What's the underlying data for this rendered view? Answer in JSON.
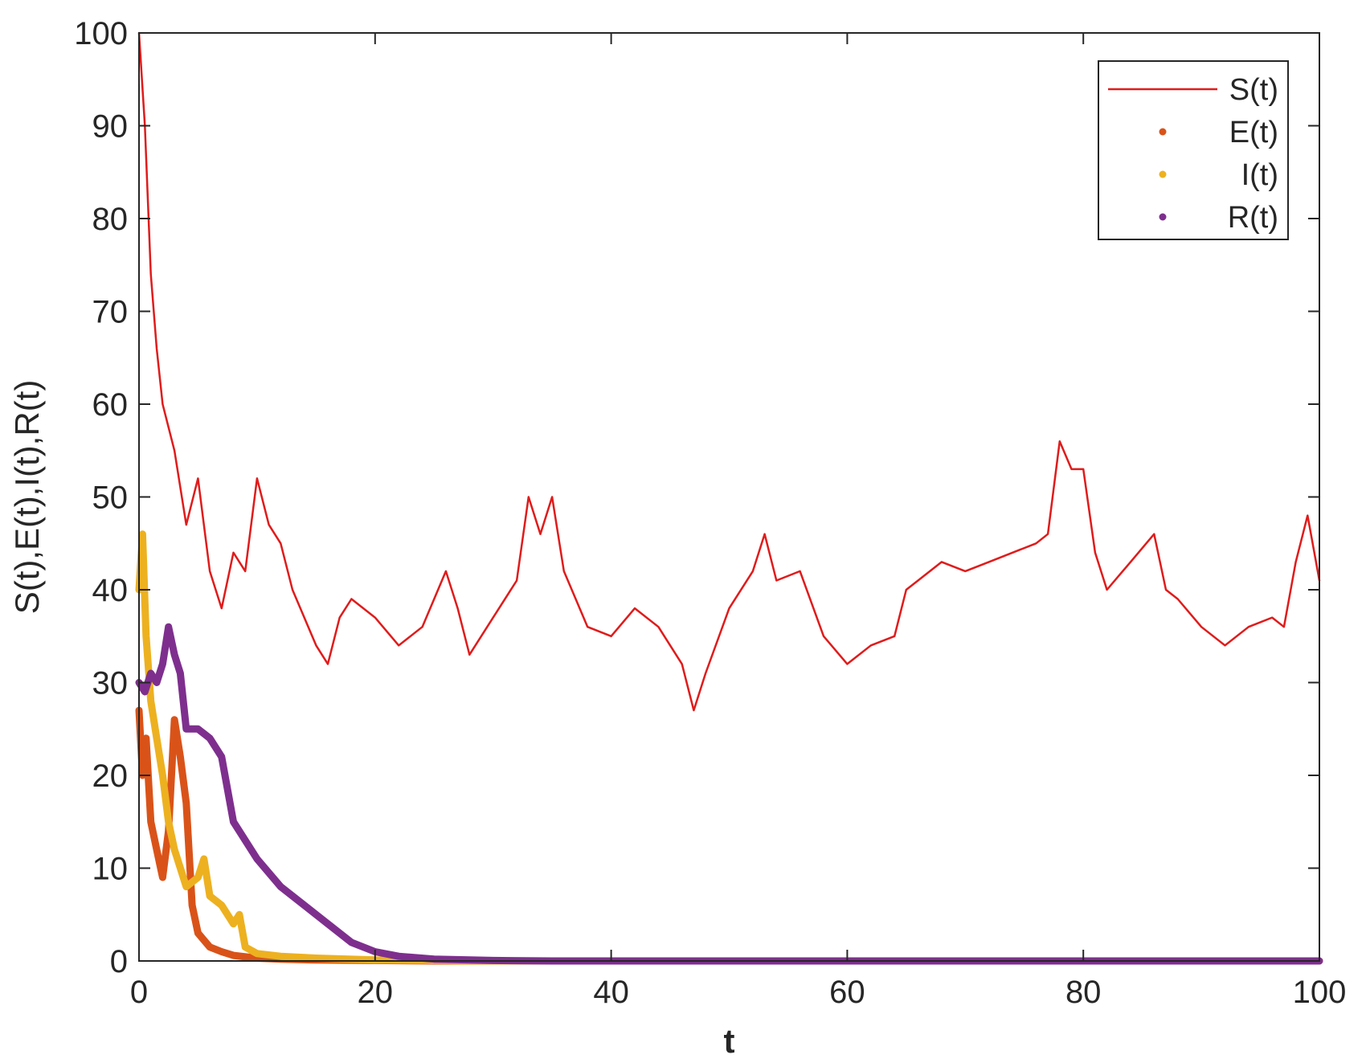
{
  "chart_data": {
    "type": "line",
    "title": "",
    "xlabel": "t",
    "ylabel": "S(t),E(t),I(t),R(t)",
    "xlim": [
      0,
      100
    ],
    "ylim": [
      0,
      100
    ],
    "xticks": [
      "0",
      "20",
      "40",
      "60",
      "80",
      "100"
    ],
    "yticks": [
      "0",
      "10",
      "20",
      "30",
      "40",
      "50",
      "60",
      "70",
      "80",
      "90",
      "100"
    ],
    "grid": false,
    "legend_position": "top-right",
    "series": [
      {
        "name": "S(t)",
        "color": "#e01b1b",
        "style": "solid-thin",
        "x": [
          0,
          0.5,
          1,
          1.5,
          2,
          3,
          4,
          5,
          6,
          7,
          8,
          9,
          10,
          11,
          12,
          13,
          14,
          15,
          16,
          17,
          18,
          20,
          22,
          24,
          25,
          26,
          27,
          28,
          30,
          32,
          33,
          34,
          35,
          36,
          38,
          40,
          42,
          44,
          46,
          47,
          48,
          50,
          52,
          53,
          54,
          56,
          58,
          60,
          62,
          64,
          65,
          66,
          68,
          70,
          72,
          74,
          76,
          77,
          78,
          79,
          80,
          81,
          82,
          84,
          86,
          87,
          88,
          90,
          92,
          94,
          96,
          97,
          98,
          99,
          100
        ],
        "y": [
          100,
          90,
          74,
          66,
          60,
          55,
          47,
          52,
          42,
          38,
          44,
          42,
          52,
          47,
          45,
          40,
          37,
          34,
          32,
          37,
          39,
          37,
          34,
          36,
          39,
          42,
          38,
          33,
          37,
          41,
          50,
          46,
          50,
          42,
          36,
          35,
          38,
          36,
          32,
          27,
          31,
          38,
          42,
          46,
          41,
          42,
          35,
          32,
          34,
          35,
          40,
          41,
          43,
          42,
          43,
          44,
          45,
          46,
          56,
          53,
          53,
          44,
          40,
          43,
          46,
          40,
          39,
          36,
          34,
          36,
          37,
          36,
          43,
          48,
          41
        ]
      },
      {
        "name": "E(t)",
        "color": "#d95319",
        "style": "dotted-thick",
        "x": [
          0,
          0.3,
          0.6,
          1,
          1.5,
          2,
          2.5,
          3,
          3.5,
          4,
          4.5,
          5,
          6,
          7,
          8,
          10,
          12,
          15,
          20,
          25,
          30,
          40,
          60,
          80,
          100
        ],
        "y": [
          27,
          20,
          24,
          15,
          12,
          9,
          14,
          26,
          22,
          17,
          6,
          3,
          1.5,
          1,
          0.6,
          0.3,
          0.2,
          0.1,
          0.05,
          0,
          0,
          0,
          0,
          0,
          0
        ]
      },
      {
        "name": "I(t)",
        "color": "#edb120",
        "style": "dotted-thick",
        "x": [
          0,
          0.3,
          0.6,
          1,
          1.5,
          2,
          2.5,
          3,
          4,
          5,
          5.5,
          6,
          7,
          8,
          8.5,
          9,
          10,
          12,
          15,
          20,
          25,
          30,
          40,
          60,
          80,
          100
        ],
        "y": [
          40,
          46,
          35,
          28,
          24,
          20,
          15,
          12,
          8,
          9,
          11,
          7,
          6,
          4,
          5,
          1.5,
          0.8,
          0.5,
          0.3,
          0.1,
          0.05,
          0,
          0,
          0,
          0,
          0
        ],
        "notes": ""
      },
      {
        "name": "R(t)",
        "color": "#7e2f8e",
        "style": "dotted-thick",
        "x": [
          0,
          0.5,
          1,
          1.5,
          2,
          2.5,
          3,
          3.5,
          4,
          5,
          6,
          7,
          8,
          10,
          12,
          14,
          16,
          18,
          20,
          22,
          25,
          30,
          35,
          40,
          60,
          80,
          100
        ],
        "y": [
          30,
          29,
          31,
          30,
          32,
          36,
          33,
          31,
          25,
          25,
          24,
          22,
          15,
          11,
          8,
          6,
          4,
          2,
          1,
          0.5,
          0.2,
          0.05,
          0,
          0,
          0,
          0,
          0
        ]
      }
    ]
  }
}
